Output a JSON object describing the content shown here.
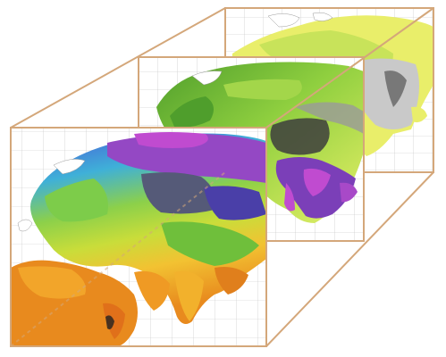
{
  "figure": {
    "description_kind": "stacked-map-slices",
    "frame_color": "#d4a77a",
    "layers": [
      {
        "name": "back-layer",
        "theme": "eurasia-yellow-green-grey-climate-map",
        "palette": {
          "land": "#e9ee6a",
          "lowland": "#b8dd4f",
          "masked": "#c9c9c9",
          "dark": "#555555"
        }
      },
      {
        "name": "middle-layer",
        "theme": "eurasia-green-purple-climate-map",
        "palette": {
          "land": "#6fbf3b",
          "wet": "#a8d84a",
          "purple": "#7b3fb8",
          "magenta": "#c04bd0",
          "dark": "#3d3d3d",
          "grey": "#9a9a9a"
        }
      },
      {
        "name": "front-layer",
        "theme": "eurasia-rainbow-climate-map",
        "palette": {
          "hot": "#e88a1e",
          "warm": "#f2c232",
          "mild": "#8cd04a",
          "cool": "#3fb0d8",
          "cold": "#4a55d8",
          "polar": "#9448c4",
          "mask": "#555a78"
        }
      }
    ]
  }
}
